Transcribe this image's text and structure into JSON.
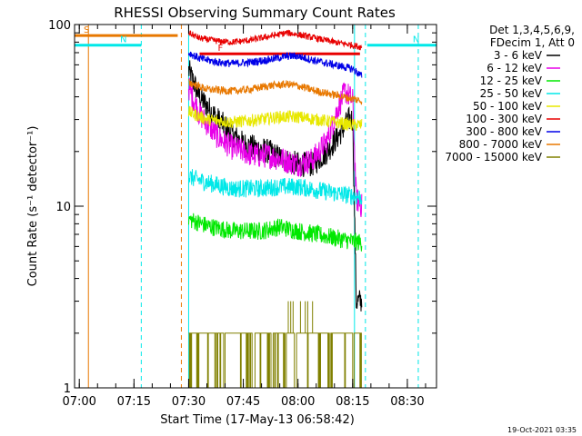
{
  "chart_data": {
    "type": "line",
    "title": "RHESSI Observing Summary Count Rates",
    "xlabel": "Start Time (17-May-13 06:58:42)",
    "ylabel": "Count Rate (s⁻¹ detector⁻¹)",
    "y_scale": "log",
    "xlim": [
      "06:58:42",
      "08:38:00"
    ],
    "ylim": [
      1,
      100
    ],
    "x_ticks": [
      "07:00",
      "07:15",
      "07:30",
      "07:45",
      "08:00",
      "08:15",
      "08:30"
    ],
    "y_ticks": [
      "1",
      "10",
      "100"
    ],
    "timestamp": "19-Oct-2021 03:35",
    "legend": {
      "placement": "right",
      "header": [
        "Det 1,3,4,5,6,9,",
        "FDecim 1, Att 0"
      ]
    },
    "flags": [
      {
        "label": "S",
        "color": "#e87800",
        "start": "06:58:42",
        "end": "07:27:00",
        "level": 87
      },
      {
        "label": "N",
        "color": "#00e8e8",
        "start": "06:58:42",
        "end": "07:17:00",
        "level": 77
      },
      {
        "label": "N",
        "color": "#00e8e8",
        "start": "08:19:00",
        "end": "08:38:00",
        "level": 77
      },
      {
        "label": "F",
        "color": "#e80000",
        "start": "07:33:00",
        "end": "08:17:00",
        "level": 69
      }
    ],
    "vlines": [
      {
        "time": "07:02:30",
        "color": "#e87800",
        "style": "solid"
      },
      {
        "time": "07:17:00",
        "color": "#00e8e8",
        "style": "dashed"
      },
      {
        "time": "07:28:00",
        "color": "#e87800",
        "style": "dashed"
      },
      {
        "time": "07:30:00",
        "color": "#00e8e8",
        "style": "solid"
      },
      {
        "time": "08:15:30",
        "color": "#00e8e8",
        "style": "solid"
      },
      {
        "time": "08:18:30",
        "color": "#00e8e8",
        "style": "dashed"
      },
      {
        "time": "08:33:00",
        "color": "#00e8e8",
        "style": "dashed"
      }
    ],
    "series": [
      {
        "name": "3 - 6 keV",
        "color": "#000000",
        "noise": 0.07,
        "points": [
          [
            "07:30:00",
            56
          ],
          [
            "07:33:00",
            40
          ],
          [
            "07:38:00",
            30
          ],
          [
            "07:42:00",
            25
          ],
          [
            "07:45:00",
            22
          ],
          [
            "07:48:00",
            21
          ],
          [
            "07:52:00",
            20
          ],
          [
            "07:56:00",
            18
          ],
          [
            "08:00:00",
            17
          ],
          [
            "08:04:00",
            17
          ],
          [
            "08:08:00",
            20
          ],
          [
            "08:12:00",
            26
          ],
          [
            "08:14:00",
            30
          ],
          [
            "08:15:00",
            30
          ],
          [
            "08:16:00",
            3
          ],
          [
            "08:17:30",
            3
          ]
        ]
      },
      {
        "name": "6 - 12 keV",
        "color": "#e800e8",
        "noise": 0.07,
        "points": [
          [
            "07:30:00",
            45
          ],
          [
            "07:33:00",
            32
          ],
          [
            "07:38:00",
            24
          ],
          [
            "07:42:00",
            21
          ],
          [
            "07:45:00",
            20
          ],
          [
            "07:48:00",
            19
          ],
          [
            "07:52:00",
            19
          ],
          [
            "07:56:00",
            18
          ],
          [
            "08:00:00",
            17
          ],
          [
            "08:04:00",
            18
          ],
          [
            "08:08:00",
            23
          ],
          [
            "08:11:00",
            35
          ],
          [
            "08:13:00",
            43
          ],
          [
            "08:15:00",
            38
          ],
          [
            "08:16:00",
            11
          ],
          [
            "08:17:30",
            10
          ]
        ]
      },
      {
        "name": "12 - 25 keV",
        "color": "#00e800",
        "noise": 0.05,
        "points": [
          [
            "07:30:00",
            8.5
          ],
          [
            "07:35:00",
            7.8
          ],
          [
            "07:42:00",
            7.3
          ],
          [
            "07:50:00",
            7.3
          ],
          [
            "07:55:00",
            7.7
          ],
          [
            "08:00:00",
            7.3
          ],
          [
            "08:05:00",
            7.0
          ],
          [
            "08:10:00",
            6.7
          ],
          [
            "08:15:00",
            6.4
          ],
          [
            "08:17:30",
            6.3
          ]
        ]
      },
      {
        "name": "25 - 50 keV",
        "color": "#00e8e8",
        "noise": 0.05,
        "points": [
          [
            "07:30:00",
            14.5
          ],
          [
            "07:35:00",
            13.5
          ],
          [
            "07:42:00",
            12.5
          ],
          [
            "07:50:00",
            12.5
          ],
          [
            "07:55:00",
            12.8
          ],
          [
            "08:00:00",
            12.8
          ],
          [
            "08:05:00",
            12.3
          ],
          [
            "08:10:00",
            11.8
          ],
          [
            "08:15:00",
            11.4
          ],
          [
            "08:17:30",
            11.2
          ]
        ]
      },
      {
        "name": "50 - 100 keV",
        "color": "#e8e800",
        "noise": 0.035,
        "points": [
          [
            "07:30:00",
            33
          ],
          [
            "07:35:00",
            30
          ],
          [
            "07:42:00",
            29
          ],
          [
            "07:50:00",
            30
          ],
          [
            "07:55:00",
            31
          ],
          [
            "08:00:00",
            31
          ],
          [
            "08:05:00",
            30
          ],
          [
            "08:10:00",
            29
          ],
          [
            "08:15:00",
            28
          ],
          [
            "08:17:30",
            28
          ]
        ]
      },
      {
        "name": "100 - 300 keV",
        "color": "#e80000",
        "noise": 0.018,
        "points": [
          [
            "07:30:00",
            90
          ],
          [
            "07:33:00",
            84
          ],
          [
            "07:38:00",
            81
          ],
          [
            "07:42:00",
            80
          ],
          [
            "07:47:00",
            82
          ],
          [
            "07:52:00",
            86
          ],
          [
            "07:57:00",
            90
          ],
          [
            "08:00:00",
            88
          ],
          [
            "08:05:00",
            84
          ],
          [
            "08:10:00",
            80
          ],
          [
            "08:15:00",
            77
          ],
          [
            "08:17:30",
            75
          ]
        ]
      },
      {
        "name": "300 - 800 keV",
        "color": "#0000e8",
        "noise": 0.022,
        "points": [
          [
            "07:30:00",
            70
          ],
          [
            "07:33:00",
            65
          ],
          [
            "07:38:00",
            62
          ],
          [
            "07:42:00",
            61
          ],
          [
            "07:47:00",
            62
          ],
          [
            "07:52:00",
            64
          ],
          [
            "07:57:00",
            67
          ],
          [
            "08:00:00",
            67
          ],
          [
            "08:05:00",
            63
          ],
          [
            "08:10:00",
            60
          ],
          [
            "08:15:00",
            57
          ],
          [
            "08:17:30",
            52
          ]
        ]
      },
      {
        "name": "800 - 7000 keV",
        "color": "#e87800",
        "noise": 0.022,
        "points": [
          [
            "07:30:00",
            48
          ],
          [
            "07:35:00",
            44
          ],
          [
            "07:42:00",
            43
          ],
          [
            "07:47:00",
            44
          ],
          [
            "07:52:00",
            46
          ],
          [
            "07:57:00",
            47
          ],
          [
            "08:00:00",
            46
          ],
          [
            "08:05:00",
            43
          ],
          [
            "08:10:00",
            41
          ],
          [
            "08:15:00",
            39
          ],
          [
            "08:17:30",
            38
          ]
        ]
      },
      {
        "name": "7000 - 15000 keV",
        "color": "#808000",
        "noise": 0.0,
        "points": [
          [
            "07:30:00",
            2
          ],
          [
            "08:15:00",
            2
          ],
          [
            "08:17:30",
            2
          ]
        ]
      }
    ]
  }
}
